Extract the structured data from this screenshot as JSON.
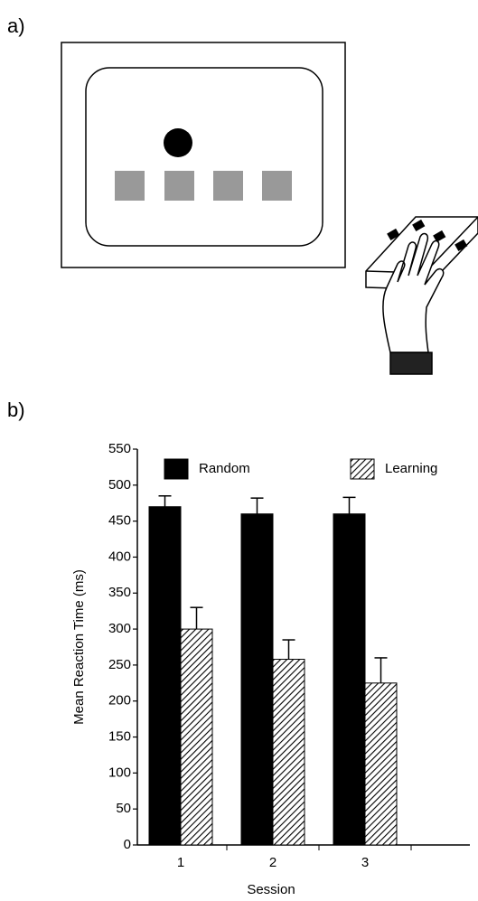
{
  "panel_a": {
    "label": "a)"
  },
  "panel_b": {
    "label": "b)"
  },
  "chart_data": {
    "type": "bar",
    "categories": [
      "1",
      "2",
      "3"
    ],
    "series": [
      {
        "name": "Random",
        "color": "#000000",
        "fill": "solid",
        "values": [
          470,
          460,
          460
        ],
        "errors": [
          15,
          22,
          23
        ]
      },
      {
        "name": "Learning",
        "color": "#000000",
        "fill": "hatch",
        "values": [
          300,
          258,
          225
        ],
        "errors": [
          30,
          27,
          35
        ]
      }
    ],
    "xlabel": "Session",
    "ylabel": "Mean Reaction Time (ms)",
    "ylim": [
      0,
      550
    ],
    "yticks": [
      0,
      50,
      100,
      150,
      200,
      250,
      300,
      350,
      400,
      450,
      500,
      550
    ],
    "legend": "top",
    "grid": false
  }
}
